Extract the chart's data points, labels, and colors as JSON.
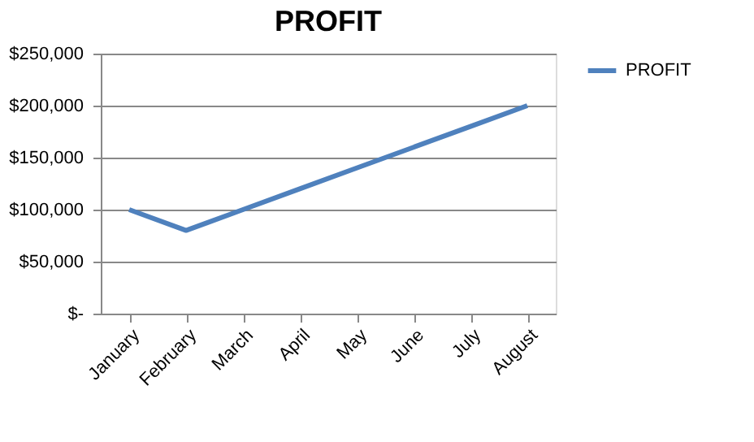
{
  "chart_data": {
    "type": "line",
    "title": "PROFIT",
    "categories": [
      "January",
      "February",
      "March",
      "April",
      "May",
      "June",
      "July",
      "August"
    ],
    "series": [
      {
        "name": "PROFIT",
        "color": "#4f81bd",
        "values": [
          100000,
          80000,
          100000,
          120000,
          140000,
          160000,
          180000,
          200000
        ]
      }
    ],
    "ylim": [
      0,
      250000
    ],
    "yticks": [
      {
        "value": 0,
        "label": "$-"
      },
      {
        "value": 50000,
        "label": "$50,000"
      },
      {
        "value": 100000,
        "label": "$100,000"
      },
      {
        "value": 150000,
        "label": "$150,000"
      },
      {
        "value": 200000,
        "label": "$200,000"
      },
      {
        "value": 250000,
        "label": "$250,000"
      }
    ],
    "grid": "y",
    "legend": "right",
    "marker": "none",
    "line_style": "solid"
  }
}
